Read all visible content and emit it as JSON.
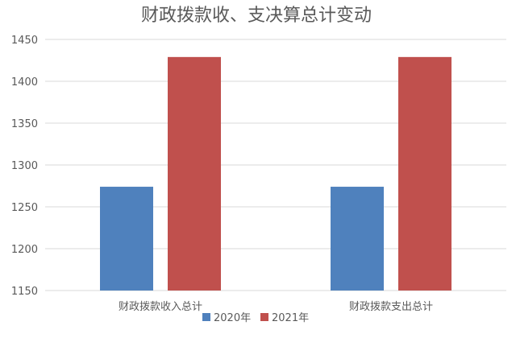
{
  "chart_data": {
    "type": "bar",
    "title": "财政拨款收、支决算总计变动",
    "categories": [
      "财政拨款收入总计",
      "财政拨款支出总计"
    ],
    "series": [
      {
        "name": "2020年",
        "color": "#4f81bd",
        "values": [
          1274,
          1274
        ]
      },
      {
        "name": "2021年",
        "color": "#c0504d",
        "values": [
          1429,
          1429
        ]
      }
    ],
    "ylim": [
      1150,
      1450
    ],
    "yticks": [
      1150,
      1200,
      1250,
      1300,
      1350,
      1400,
      1450
    ],
    "grid": true,
    "legend_position": "bottom"
  }
}
